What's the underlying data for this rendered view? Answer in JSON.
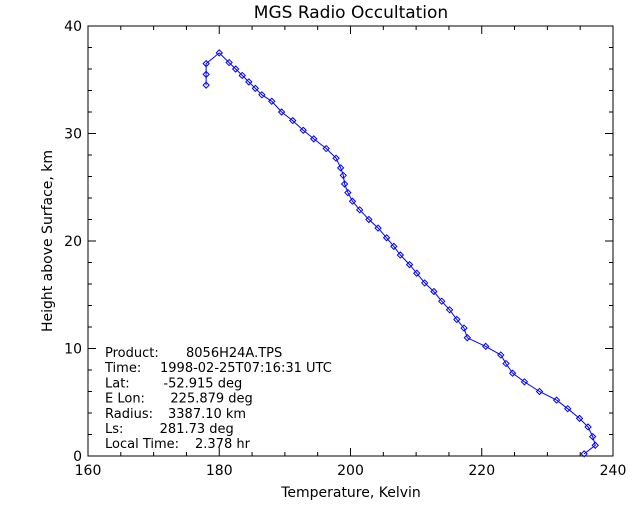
{
  "chart_data": {
    "type": "line",
    "title": "MGS Radio Occultation",
    "xlabel": "Temperature, Kelvin",
    "ylabel": "Height above Surface, km",
    "xlim": [
      160,
      240
    ],
    "ylim": [
      0,
      40
    ],
    "x_ticks": [
      160,
      180,
      200,
      220,
      240
    ],
    "y_ticks": [
      0,
      10,
      20,
      30,
      40
    ],
    "grid": false,
    "line_color": "#0000ff",
    "marker": "diamond",
    "series": [
      {
        "points": [
          [
            235.6,
            0.2
          ],
          [
            237.3,
            1.0
          ],
          [
            236.9,
            1.8
          ],
          [
            236.2,
            2.7
          ],
          [
            234.9,
            3.5
          ],
          [
            233.1,
            4.4
          ],
          [
            231.4,
            5.2
          ],
          [
            228.8,
            6.0
          ],
          [
            226.5,
            6.9
          ],
          [
            224.7,
            7.7
          ],
          [
            223.7,
            8.6
          ],
          [
            222.9,
            9.4
          ],
          [
            220.6,
            10.2
          ],
          [
            217.8,
            11.0
          ],
          [
            217.3,
            11.9
          ],
          [
            216.2,
            12.7
          ],
          [
            215.1,
            13.6
          ],
          [
            213.9,
            14.4
          ],
          [
            212.7,
            15.3
          ],
          [
            211.3,
            16.1
          ],
          [
            210.1,
            17.0
          ],
          [
            209.0,
            17.8
          ],
          [
            207.6,
            18.7
          ],
          [
            206.6,
            19.5
          ],
          [
            205.5,
            20.3
          ],
          [
            204.2,
            21.2
          ],
          [
            202.8,
            22.0
          ],
          [
            201.4,
            22.9
          ],
          [
            200.3,
            23.7
          ],
          [
            199.6,
            24.5
          ],
          [
            199.1,
            25.3
          ],
          [
            198.9,
            26.1
          ],
          [
            198.5,
            26.8
          ],
          [
            197.8,
            27.7
          ],
          [
            196.3,
            28.6
          ],
          [
            194.4,
            29.5
          ],
          [
            192.8,
            30.3
          ],
          [
            191.2,
            31.2
          ],
          [
            189.5,
            32.0
          ],
          [
            188.0,
            33.0
          ],
          [
            186.5,
            33.6
          ],
          [
            185.5,
            34.2
          ],
          [
            184.5,
            34.8
          ],
          [
            183.5,
            35.4
          ],
          [
            182.5,
            36.0
          ],
          [
            181.5,
            36.6
          ],
          [
            180.0,
            37.5
          ],
          [
            178.0,
            36.5
          ],
          [
            178.0,
            35.5
          ],
          [
            178.0,
            34.5
          ]
        ]
      }
    ],
    "annotations": {
      "lines": [
        {
          "label": "Product:",
          "value": "8056H24A.TPS"
        },
        {
          "label": "Time:",
          "value": "1998-02-25T07:16:31 UTC"
        },
        {
          "label": "Lat:",
          "value": "   -52.915 deg"
        },
        {
          "label": "E Lon:",
          "value": "   225.879 deg"
        },
        {
          "label": "Radius:",
          "value": "3387.10 km"
        },
        {
          "label": "Ls:",
          "value": "     281.73 deg"
        },
        {
          "label": "Local Time:",
          "value": "2.378 hr"
        }
      ]
    }
  }
}
